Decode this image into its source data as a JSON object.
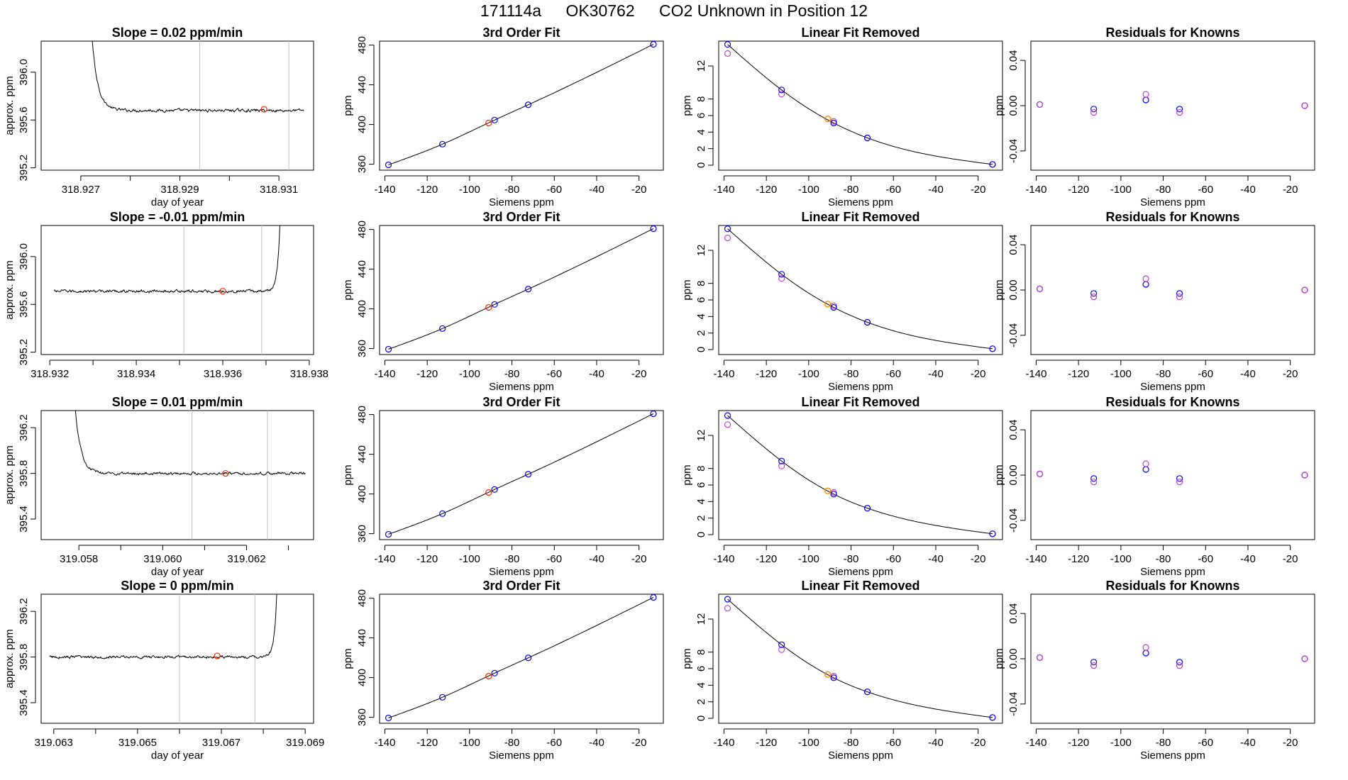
{
  "header": {
    "run_id": "171114a",
    "instrument": "OK30762",
    "description": "CO2 Unknown in Position  12"
  },
  "colors": {
    "axis": "#000000",
    "trace": "#000000",
    "marker_lines": "#bebebe",
    "known_points": "#0000ff",
    "residual_points": "#c040d0",
    "unknown_point": "#ff2a00",
    "unknown_fit_point": "#ff8c00"
  },
  "chart_data": [
    {
      "type": "line",
      "panel": "trace",
      "row": 0,
      "title": "Slope =  0.02  ppm/min",
      "xlabel": "day of year",
      "ylabel": "approx. ppm",
      "xlim": [
        318.9262,
        318.9317
      ],
      "ylim": [
        395.18,
        396.26
      ],
      "xticks": [
        318.927,
        318.929,
        318.931
      ],
      "xminor": [
        318.928,
        318.93
      ],
      "xticklabels": [
        "318.927",
        "318.929",
        "318.931"
      ],
      "yticks": [
        395.2,
        395.6,
        396.0
      ],
      "yticklabels": [
        "395.2",
        "395.6",
        "396.0"
      ],
      "start": 318.9269,
      "end": 318.9315,
      "base": 395.68,
      "noise": 0.011,
      "spike": "start",
      "spike_edge": 318.92718,
      "spike_decay": 0.00012,
      "vlines": [
        318.9294,
        318.9312
      ],
      "unknown_point": {
        "x": 318.9307,
        "y": 395.69
      }
    },
    {
      "type": "line",
      "panel": "trace",
      "row": 1,
      "title": "Slope =  -0.01  ppm/min",
      "xlabel": "",
      "ylabel": "approx. ppm",
      "xlim": [
        318.9318,
        318.9381
      ],
      "ylim": [
        395.18,
        396.26
      ],
      "xticks": [
        318.932,
        318.934,
        318.936,
        318.938
      ],
      "xminor": [
        318.933,
        318.935,
        318.937
      ],
      "xticklabels": [
        "318.932",
        "318.934",
        "318.936",
        "318.938"
      ],
      "yticks": [
        395.2,
        395.6,
        396.0
      ],
      "yticklabels": [
        "395.2",
        "395.6",
        "396.0"
      ],
      "start": 318.9321,
      "end": 318.9374,
      "base": 395.71,
      "noise": 0.011,
      "spike": "end",
      "spike_edge": 318.93735,
      "spike_decay": 6e-05,
      "vlines": [
        318.9351,
        318.9369
      ],
      "unknown_point": {
        "x": 318.936,
        "y": 395.71
      }
    },
    {
      "type": "line",
      "panel": "trace",
      "row": 2,
      "title": "Slope =  0.01  ppm/min",
      "xlabel": "day of year",
      "ylabel": "approx. ppm",
      "xlim": [
        319.0571,
        319.0636
      ],
      "ylim": [
        395.22,
        396.35
      ],
      "xticks": [
        319.058,
        319.06,
        319.062
      ],
      "xminor": [
        319.059,
        319.061,
        319.063
      ],
      "xticklabels": [
        "319.058",
        "319.060",
        "319.062"
      ],
      "yticks": [
        395.4,
        395.8,
        396.2
      ],
      "yticklabels": [
        "395.4",
        "395.8",
        "396.2"
      ],
      "start": 319.0575,
      "end": 319.0634,
      "base": 395.8,
      "noise": 0.011,
      "spike": "start",
      "spike_edge": 319.05785,
      "spike_decay": 0.00014,
      "vlines": [
        319.0607,
        319.0625
      ],
      "unknown_point": {
        "x": 319.0615,
        "y": 395.8
      }
    },
    {
      "type": "line",
      "panel": "trace",
      "row": 3,
      "title": "Slope =  0  ppm/min",
      "xlabel": "day of year",
      "ylabel": "approx. ppm",
      "xlim": [
        319.0627,
        319.0692
      ],
      "ylim": [
        395.22,
        396.35
      ],
      "xticks": [
        319.063,
        319.065,
        319.067,
        319.069
      ],
      "xminor": [
        319.064,
        319.066,
        319.068
      ],
      "xticklabels": [
        "319.063",
        "319.065",
        "319.067",
        "319.069"
      ],
      "yticks": [
        395.4,
        395.8,
        396.2
      ],
      "yticklabels": [
        "395.4",
        "395.8",
        "396.2"
      ],
      "start": 319.0629,
      "end": 319.0684,
      "base": 395.8,
      "noise": 0.011,
      "spike": "end",
      "spike_edge": 319.06835,
      "spike_decay": 6e-05,
      "vlines": [
        319.066,
        319.0678
      ],
      "unknown_point": {
        "x": 319.0669,
        "y": 395.81
      }
    },
    {
      "type": "scatter",
      "panel": "fit",
      "row": 0,
      "title": "3rd Order Fit",
      "xlabel": "Siemens ppm",
      "ylabel": "ppm",
      "xlim": [
        -142.5,
        -8.5
      ],
      "ylim": [
        354,
        484
      ],
      "xticks": [
        -140,
        -120,
        -100,
        -80,
        -60,
        -40,
        -20
      ],
      "yticks": [
        360,
        400,
        440,
        480
      ],
      "knowns": {
        "x": [
          -138.3,
          -112.8,
          -88.2,
          -72.3,
          -13.2
        ],
        "y": [
          359.4,
          380.2,
          404.5,
          419.9,
          480.8
        ]
      },
      "unknown": {
        "x": -91.0,
        "y": 401.5
      },
      "fit": [
        [
          -138.3,
          359.4
        ],
        [
          -112.8,
          380.2
        ],
        [
          -88.2,
          404.5
        ],
        [
          -72.3,
          419.9
        ],
        [
          -13.2,
          480.8
        ]
      ]
    },
    {
      "type": "scatter",
      "panel": "fit",
      "row": 1,
      "title": "3rd Order Fit",
      "xlabel": "Siemens ppm",
      "ylabel": "ppm",
      "xlim": [
        -142.5,
        -8.5
      ],
      "ylim": [
        354,
        484
      ],
      "xticks": [
        -140,
        -120,
        -100,
        -80,
        -60,
        -40,
        -20
      ],
      "yticks": [
        360,
        400,
        440,
        480
      ],
      "knowns": {
        "x": [
          -138.3,
          -112.8,
          -88.2,
          -72.3,
          -13.2
        ],
        "y": [
          359.4,
          380.2,
          404.5,
          419.9,
          480.8
        ]
      },
      "unknown": {
        "x": -91.0,
        "y": 401.5
      },
      "fit": [
        [
          -138.3,
          359.4
        ],
        [
          -112.8,
          380.2
        ],
        [
          -88.2,
          404.5
        ],
        [
          -72.3,
          419.9
        ],
        [
          -13.2,
          480.8
        ]
      ]
    },
    {
      "type": "scatter",
      "panel": "fit",
      "row": 2,
      "title": "3rd Order Fit",
      "xlabel": "Siemens ppm",
      "ylabel": "ppm",
      "xlim": [
        -142.5,
        -8.5
      ],
      "ylim": [
        354,
        484
      ],
      "xticks": [
        -140,
        -120,
        -100,
        -80,
        -60,
        -40,
        -20
      ],
      "yticks": [
        360,
        400,
        440,
        480
      ],
      "knowns": {
        "x": [
          -138.3,
          -112.8,
          -88.2,
          -72.3,
          -13.2
        ],
        "y": [
          359.4,
          380.2,
          404.5,
          419.9,
          480.8
        ]
      },
      "unknown": {
        "x": -91.0,
        "y": 401.5
      },
      "fit": [
        [
          -138.3,
          359.4
        ],
        [
          -112.8,
          380.2
        ],
        [
          -88.2,
          404.5
        ],
        [
          -72.3,
          419.9
        ],
        [
          -13.2,
          480.8
        ]
      ]
    },
    {
      "type": "scatter",
      "panel": "fit",
      "row": 3,
      "title": "3rd Order Fit",
      "xlabel": "Siemens ppm",
      "ylabel": "ppm",
      "xlim": [
        -142.5,
        -8.5
      ],
      "ylim": [
        354,
        484
      ],
      "xticks": [
        -140,
        -120,
        -100,
        -80,
        -60,
        -40,
        -20
      ],
      "yticks": [
        360,
        400,
        440,
        480
      ],
      "knowns": {
        "x": [
          -138.3,
          -112.8,
          -88.2,
          -72.3,
          -13.2
        ],
        "y": [
          359.4,
          380.2,
          404.5,
          419.9,
          480.8
        ]
      },
      "unknown": {
        "x": -91.0,
        "y": 401.5
      },
      "fit": [
        [
          -138.3,
          359.4
        ],
        [
          -112.8,
          380.2
        ],
        [
          -88.2,
          404.5
        ],
        [
          -72.3,
          419.9
        ],
        [
          -13.2,
          480.8
        ]
      ]
    },
    {
      "type": "scatter",
      "panel": "linear_removed",
      "row": 0,
      "title": "Linear Fit Removed",
      "xlabel": "Siemens ppm",
      "ylabel": "ppm",
      "xlim": [
        -142.5,
        -8.5
      ],
      "ylim": [
        -0.6,
        15.0
      ],
      "xticks": [
        -140,
        -120,
        -100,
        -80,
        -60,
        -40,
        -20
      ],
      "yticks": [
        0,
        2,
        4,
        6,
        8,
        12
      ],
      "knowns": {
        "x": [
          -138.3,
          -112.8,
          -88.2,
          -72.3,
          -13.2
        ],
        "y": [
          14.6,
          9.1,
          5.1,
          3.3,
          0.1
        ]
      },
      "residual_points": {
        "x": [
          -138.3,
          -112.8,
          -88.2,
          -72.3,
          -13.2
        ],
        "y": [
          13.5,
          8.6,
          5.3,
          3.3,
          0.1
        ]
      },
      "unknown": {
        "x": -91.0,
        "y": 5.6
      },
      "curve": [
        [
          -138.3,
          14.6
        ],
        [
          -112.8,
          9.1
        ],
        [
          -88.2,
          5.1
        ],
        [
          -72.3,
          3.3
        ],
        [
          -13.2,
          0.1
        ]
      ]
    },
    {
      "type": "scatter",
      "panel": "linear_removed",
      "row": 1,
      "title": "Linear Fit Removed",
      "xlabel": "Siemens ppm",
      "ylabel": "ppm",
      "xlim": [
        -142.5,
        -8.5
      ],
      "ylim": [
        -0.6,
        15.0
      ],
      "xticks": [
        -140,
        -120,
        -100,
        -80,
        -60,
        -40,
        -20
      ],
      "yticks": [
        0,
        2,
        4,
        6,
        8,
        12
      ],
      "knowns": {
        "x": [
          -138.3,
          -112.8,
          -88.2,
          -72.3,
          -13.2
        ],
        "y": [
          14.6,
          9.1,
          5.1,
          3.3,
          0.1
        ]
      },
      "residual_points": {
        "x": [
          -138.3,
          -112.8,
          -88.2,
          -72.3,
          -13.2
        ],
        "y": [
          13.5,
          8.6,
          5.3,
          3.3,
          0.1
        ]
      },
      "unknown": {
        "x": -91.0,
        "y": 5.5
      },
      "curve": [
        [
          -138.3,
          14.6
        ],
        [
          -112.8,
          9.1
        ],
        [
          -88.2,
          5.1
        ],
        [
          -72.3,
          3.3
        ],
        [
          -13.2,
          0.1
        ]
      ]
    },
    {
      "type": "scatter",
      "panel": "linear_removed",
      "row": 2,
      "title": "Linear Fit Removed",
      "xlabel": "Siemens ppm",
      "ylabel": "ppm",
      "xlim": [
        -142.5,
        -8.5
      ],
      "ylim": [
        -0.6,
        15.0
      ],
      "xticks": [
        -140,
        -120,
        -100,
        -80,
        -60,
        -40,
        -20
      ],
      "yticks": [
        0,
        2,
        4,
        6,
        8,
        12
      ],
      "knowns": {
        "x": [
          -138.3,
          -112.8,
          -88.2,
          -72.3,
          -13.2
        ],
        "y": [
          14.4,
          8.9,
          4.9,
          3.2,
          0.1
        ]
      },
      "residual_points": {
        "x": [
          -138.3,
          -112.8,
          -88.2,
          -72.3,
          -13.2
        ],
        "y": [
          13.3,
          8.3,
          5.1,
          3.2,
          0.1
        ]
      },
      "unknown": {
        "x": -91.0,
        "y": 5.3
      },
      "curve": [
        [
          -138.3,
          14.4
        ],
        [
          -112.8,
          8.9
        ],
        [
          -88.2,
          4.9
        ],
        [
          -72.3,
          3.2
        ],
        [
          -13.2,
          0.1
        ]
      ]
    },
    {
      "type": "scatter",
      "panel": "linear_removed",
      "row": 3,
      "title": "Linear Fit Removed",
      "xlabel": "Siemens ppm",
      "ylabel": "ppm",
      "xlim": [
        -142.5,
        -8.5
      ],
      "ylim": [
        -0.6,
        15.0
      ],
      "xticks": [
        -140,
        -120,
        -100,
        -80,
        -60,
        -40,
        -20
      ],
      "yticks": [
        0,
        2,
        4,
        6,
        8,
        12
      ],
      "knowns": {
        "x": [
          -138.3,
          -112.8,
          -88.2,
          -72.3,
          -13.2
        ],
        "y": [
          14.4,
          8.9,
          4.9,
          3.2,
          0.1
        ]
      },
      "residual_points": {
        "x": [
          -138.3,
          -112.8,
          -88.2,
          -72.3,
          -13.2
        ],
        "y": [
          13.3,
          8.3,
          5.1,
          3.2,
          0.1
        ]
      },
      "unknown": {
        "x": -91.0,
        "y": 5.3
      },
      "curve": [
        [
          -138.3,
          14.4
        ],
        [
          -112.8,
          8.9
        ],
        [
          -88.2,
          4.9
        ],
        [
          -72.3,
          3.2
        ],
        [
          -13.2,
          0.1
        ]
      ]
    },
    {
      "type": "scatter",
      "panel": "residuals",
      "row": 0,
      "title": "Residuals for Knowns",
      "xlabel": "Siemens ppm",
      "ylabel": "ppm",
      "xlim": [
        -142.5,
        -8.5
      ],
      "ylim": [
        -0.057,
        0.057
      ],
      "xticks": [
        -140,
        -120,
        -100,
        -80,
        -60,
        -40,
        -20
      ],
      "yticks": [
        -0.04,
        0.0,
        0.04
      ],
      "yticklabels": [
        "-0.04",
        "0.00",
        "0.04"
      ],
      "series": [
        {
          "name": "",
          "x": [
            -138.3,
            -112.8,
            -88.2,
            -72.3,
            -13.2
          ],
          "y": [
            0.001,
            -0.003,
            0.005,
            -0.003,
            0.0
          ]
        },
        {
          "name": "",
          "x": [
            -138.3,
            -112.8,
            -88.2,
            -72.3,
            -13.2
          ],
          "y": [
            0.001,
            -0.006,
            0.01,
            -0.006,
            0.0
          ]
        }
      ]
    },
    {
      "type": "scatter",
      "panel": "residuals",
      "row": 1,
      "title": "Residuals for Knowns",
      "xlabel": "Siemens ppm",
      "ylabel": "ppm",
      "xlim": [
        -142.5,
        -8.5
      ],
      "ylim": [
        -0.057,
        0.057
      ],
      "xticks": [
        -140,
        -120,
        -100,
        -80,
        -60,
        -40,
        -20
      ],
      "yticks": [
        -0.04,
        0.0,
        0.04
      ],
      "yticklabels": [
        "-0.04",
        "0.00",
        "0.04"
      ],
      "series": [
        {
          "name": "",
          "x": [
            -138.3,
            -112.8,
            -88.2,
            -72.3,
            -13.2
          ],
          "y": [
            0.001,
            -0.003,
            0.005,
            -0.003,
            0.0
          ]
        },
        {
          "name": "",
          "x": [
            -138.3,
            -112.8,
            -88.2,
            -72.3,
            -13.2
          ],
          "y": [
            0.001,
            -0.006,
            0.01,
            -0.006,
            0.0
          ]
        }
      ]
    },
    {
      "type": "scatter",
      "panel": "residuals",
      "row": 2,
      "title": "Residuals for Knowns",
      "xlabel": "Siemens ppm",
      "ylabel": "ppm",
      "xlim": [
        -142.5,
        -8.5
      ],
      "ylim": [
        -0.057,
        0.057
      ],
      "xticks": [
        -140,
        -120,
        -100,
        -80,
        -60,
        -40,
        -20
      ],
      "yticks": [
        -0.04,
        0.0,
        0.04
      ],
      "yticklabels": [
        "-0.04",
        "0.00",
        "0.04"
      ],
      "series": [
        {
          "name": "",
          "x": [
            -138.3,
            -112.8,
            -88.2,
            -72.3,
            -13.2
          ],
          "y": [
            0.001,
            -0.003,
            0.005,
            -0.003,
            0.0
          ]
        },
        {
          "name": "",
          "x": [
            -138.3,
            -112.8,
            -88.2,
            -72.3,
            -13.2
          ],
          "y": [
            0.001,
            -0.006,
            0.01,
            -0.006,
            0.0
          ]
        }
      ]
    },
    {
      "type": "scatter",
      "panel": "residuals",
      "row": 3,
      "title": "Residuals for Knowns",
      "xlabel": "Siemens ppm",
      "ylabel": "ppm",
      "xlim": [
        -142.5,
        -8.5
      ],
      "ylim": [
        -0.057,
        0.057
      ],
      "xticks": [
        -140,
        -120,
        -100,
        -80,
        -60,
        -40,
        -20
      ],
      "yticks": [
        -0.04,
        0.0,
        0.04
      ],
      "yticklabels": [
        "-0.04",
        "0.00",
        "0.04"
      ],
      "series": [
        {
          "name": "",
          "x": [
            -138.3,
            -112.8,
            -88.2,
            -72.3,
            -13.2
          ],
          "y": [
            0.001,
            -0.003,
            0.005,
            -0.003,
            0.0
          ]
        },
        {
          "name": "",
          "x": [
            -138.3,
            -112.8,
            -88.2,
            -72.3,
            -13.2
          ],
          "y": [
            0.001,
            -0.006,
            0.01,
            -0.006,
            0.0
          ]
        }
      ]
    }
  ]
}
